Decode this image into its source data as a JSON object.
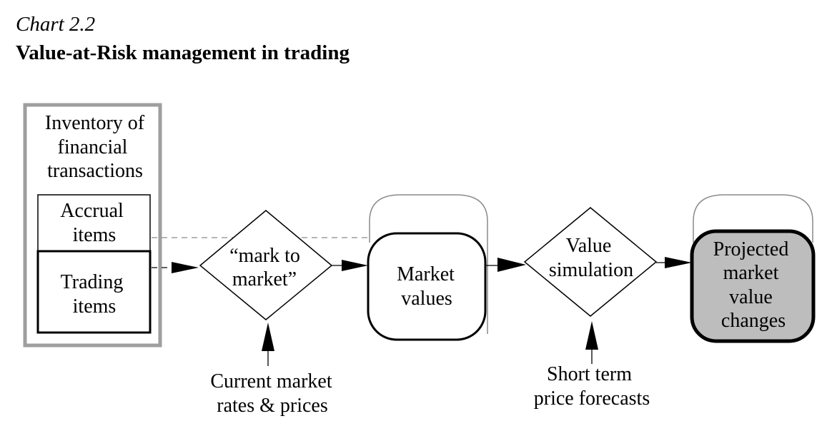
{
  "header": {
    "chart_number": "Chart 2.2",
    "title": "Value-at-Risk management in trading"
  },
  "diagram": {
    "inventory_box": {
      "label": [
        "Inventory of",
        "financial",
        "transactions"
      ],
      "accrual": [
        "Accrual",
        "items"
      ],
      "trading": [
        "Trading",
        "items"
      ]
    },
    "mark_to_market": [
      "“mark to",
      "market”"
    ],
    "market_values": [
      "Market",
      "values"
    ],
    "value_simulation": [
      "Value",
      "simulation"
    ],
    "projected_changes": [
      "Projected",
      "market",
      "value",
      "changes"
    ],
    "current_market_input": [
      "Current market",
      "rates & prices"
    ],
    "forecast_input": [
      "Short term",
      "price forecasts"
    ]
  },
  "colors": {
    "stroke": "#000000",
    "outer_frame": "#9e9e9e",
    "ghost_box": "#8a8a8a",
    "dashed_line": "#8a8a8a",
    "projected_fill": "#bdbdbd"
  }
}
